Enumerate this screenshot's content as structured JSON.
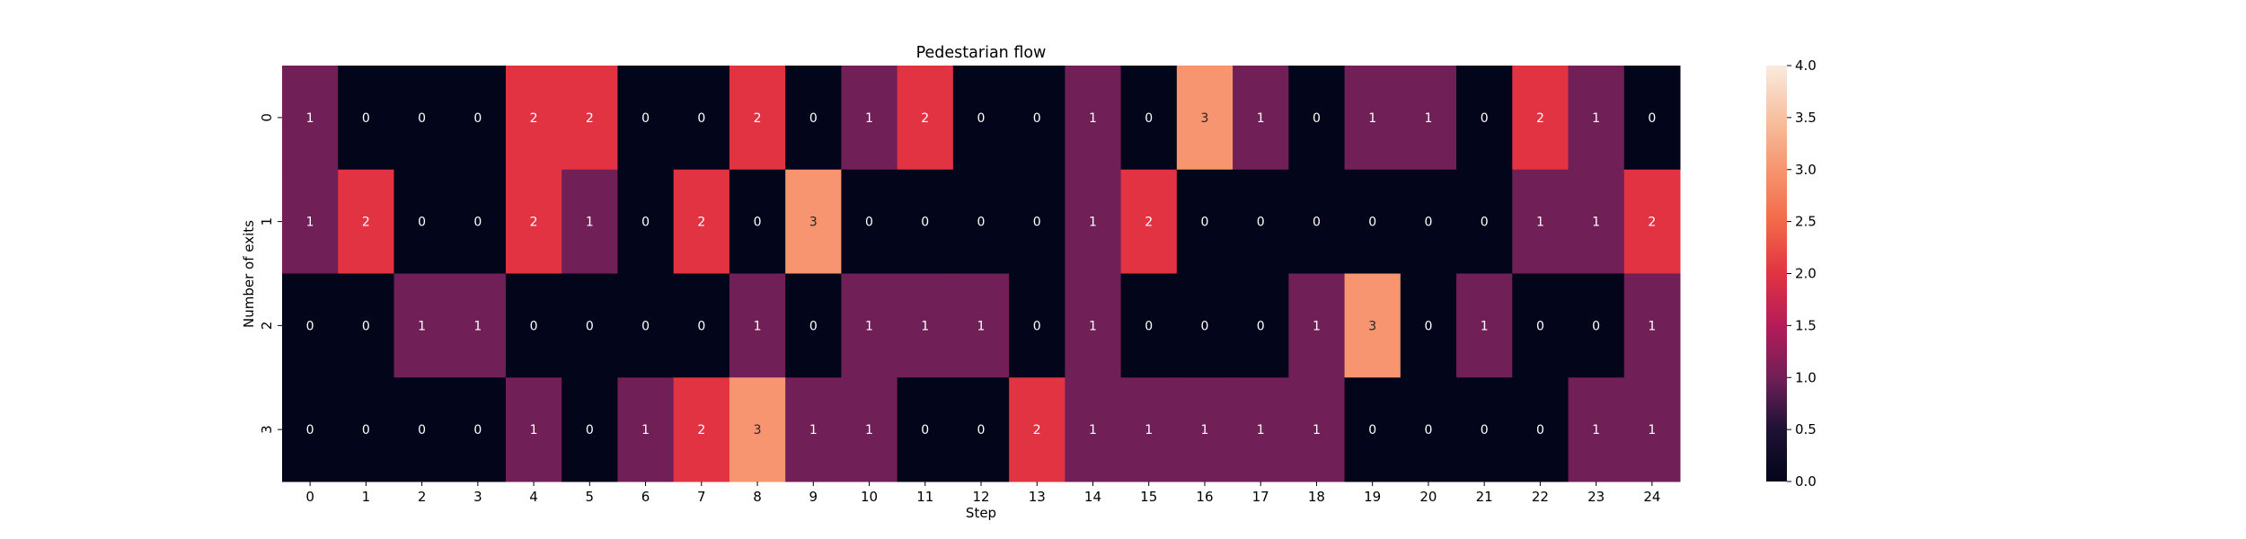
{
  "chart_data": {
    "type": "heatmap",
    "title": "Pedestarian flow",
    "xlabel": "Step",
    "ylabel": "Number of exits",
    "x_categories": [
      "0",
      "1",
      "2",
      "3",
      "4",
      "5",
      "6",
      "7",
      "8",
      "9",
      "10",
      "11",
      "12",
      "13",
      "14",
      "15",
      "16",
      "17",
      "18",
      "19",
      "20",
      "21",
      "22",
      "23",
      "24"
    ],
    "y_categories": [
      "0",
      "1",
      "2",
      "3"
    ],
    "values": [
      [
        1,
        0,
        0,
        0,
        2,
        2,
        0,
        0,
        2,
        0,
        1,
        2,
        0,
        0,
        1,
        0,
        3,
        1,
        0,
        1,
        1,
        0,
        2,
        1,
        0
      ],
      [
        1,
        2,
        0,
        0,
        2,
        1,
        0,
        2,
        0,
        3,
        0,
        0,
        0,
        0,
        1,
        2,
        0,
        0,
        0,
        0,
        0,
        0,
        1,
        1,
        2
      ],
      [
        0,
        0,
        1,
        1,
        0,
        0,
        0,
        0,
        1,
        0,
        1,
        1,
        1,
        0,
        1,
        0,
        0,
        0,
        1,
        3,
        0,
        1,
        0,
        0,
        1
      ],
      [
        0,
        0,
        0,
        0,
        1,
        0,
        1,
        2,
        3,
        1,
        1,
        0,
        0,
        2,
        1,
        1,
        1,
        1,
        1,
        0,
        0,
        0,
        0,
        1,
        1
      ]
    ],
    "colorbar": {
      "range": [
        0,
        4
      ],
      "ticks": [
        "0.0",
        "0.5",
        "1.0",
        "1.5",
        "2.0",
        "2.5",
        "3.0",
        "3.5",
        "4.0"
      ],
      "colormap": "rocket"
    },
    "annotations": true,
    "grid": false
  }
}
